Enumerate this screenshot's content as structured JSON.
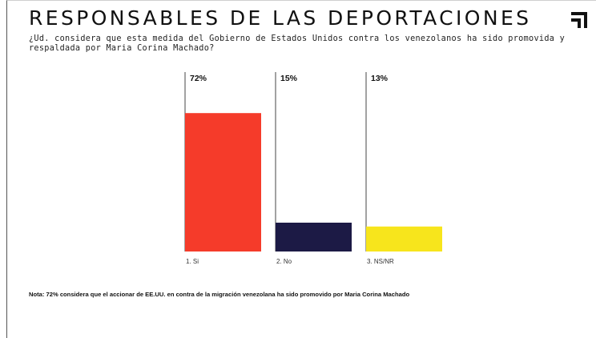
{
  "header": {
    "title": "RESPONSABLES DE LAS DEPORTACIONES",
    "question": "¿Ud. considera que esta medida del Gobierno de Estados Unidos contra los venezolanos ha sido promovida y respaldada por Maria Corina Machado?"
  },
  "note": "Nota: 72% considera que el accionar de EE.UU. en contra de la migración venezolana ha sido promovido por Maria Corina Machado",
  "colors": {
    "si": "#f53b2a",
    "no": "#1c1a45",
    "nsnr": "#f7e51c"
  },
  "chart_data": {
    "type": "bar",
    "title": "RESPONSABLES DE LAS DEPORTACIONES",
    "categories": [
      "1. Si",
      "2. No",
      "3. NS/NR"
    ],
    "values": [
      72,
      15,
      13
    ],
    "value_labels": [
      "72%",
      "15%",
      "13%"
    ],
    "colors": [
      "#f53b2a",
      "#1c1a45",
      "#f7e51c"
    ],
    "ylim": [
      0,
      100
    ],
    "grid": false,
    "legend": "none"
  }
}
